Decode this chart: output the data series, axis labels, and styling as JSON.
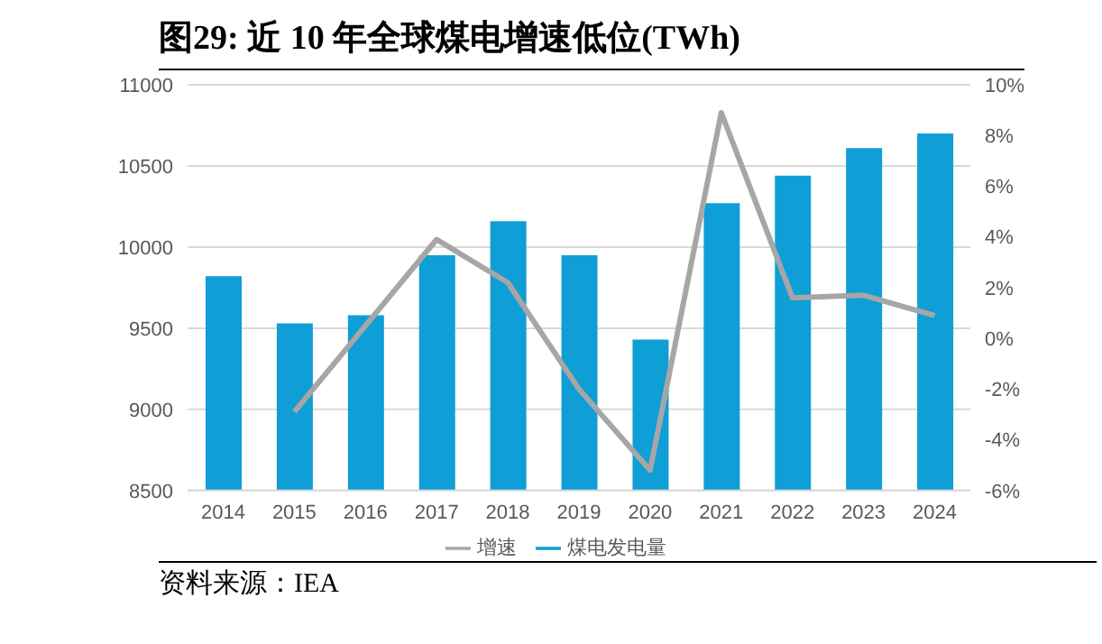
{
  "chart_data": {
    "type": "bar",
    "title": "图29:  近 10 年全球煤电增速低位(TWh)",
    "categories": [
      "2014",
      "2015",
      "2016",
      "2017",
      "2018",
      "2019",
      "2020",
      "2021",
      "2022",
      "2023",
      "2024"
    ],
    "series": [
      {
        "name": "煤电发电量",
        "color": "#0f9ed5",
        "values": [
          9820,
          9530,
          9580,
          9950,
          10160,
          9950,
          9430,
          10270,
          10440,
          10610,
          10700
        ]
      },
      {
        "name": "增速",
        "type": "line",
        "axis": "y2",
        "color": "#a6a6a6",
        "marker": "none",
        "values": [
          null,
          -2.9,
          0.5,
          3.9,
          2.2,
          -2.0,
          -5.2,
          8.9,
          1.6,
          1.7,
          0.9
        ]
      }
    ],
    "ylim": [
      8500,
      11000
    ],
    "yticks": [
      8500,
      9000,
      9500,
      10000,
      10500,
      11000
    ],
    "y2lim": [
      -6,
      10
    ],
    "y2ticks": [
      {
        "value": -6,
        "label": "-6%"
      },
      {
        "value": -4,
        "label": "-4%"
      },
      {
        "value": -2,
        "label": "-2%"
      },
      {
        "value": 0,
        "label": "0%"
      },
      {
        "value": 2,
        "label": "2%"
      },
      {
        "value": 4,
        "label": "4%"
      },
      {
        "value": 6,
        "label": "6%"
      },
      {
        "value": 8,
        "label": "8%"
      },
      {
        "value": 10,
        "label": "10%"
      }
    ],
    "grid": "y",
    "legend": "bottom",
    "annotations": [
      "资料来源：IEA"
    ]
  }
}
